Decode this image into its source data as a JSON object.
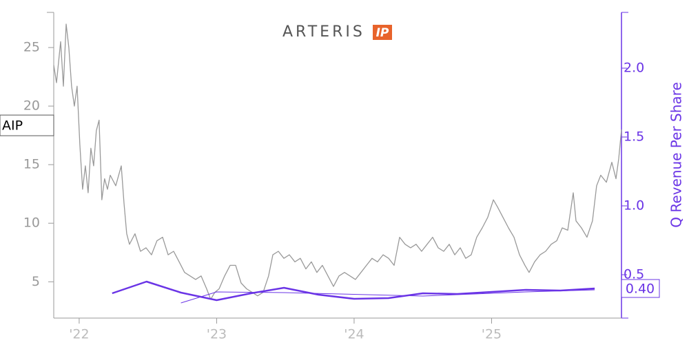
{
  "chart_data": {
    "type": "line",
    "logo_text": "ARTERIS",
    "logo_badge": "IP",
    "y2label": "Q Revenue Per Share",
    "xlim": [
      2021.815,
      2025.945
    ],
    "xticks": [
      {
        "value": 2022,
        "label": "'22"
      },
      {
        "value": 2023,
        "label": "'23"
      },
      {
        "value": 2024,
        "label": "'24"
      },
      {
        "value": 2025,
        "label": "'25"
      }
    ],
    "ylim": [
      1.9,
      28
    ],
    "yticks": [
      5,
      10,
      15,
      20,
      25
    ],
    "y2lim": [
      0.185,
      2.405
    ],
    "y2ticks": [
      0.5,
      {
        "value": 1,
        "label": "1.0"
      },
      1.5,
      {
        "value": 2,
        "label": "2.0"
      }
    ],
    "series": [
      {
        "name": "AIP",
        "color": "#999999",
        "x": [
          2021.815,
          2021.835,
          2021.865,
          2021.885,
          2021.905,
          2021.925,
          2021.945,
          2021.965,
          2021.985,
          2022.005,
          2022.025,
          2022.045,
          2022.065,
          2022.085,
          2022.105,
          2022.125,
          2022.145,
          2022.165,
          2022.185,
          2022.206,
          2022.226,
          2022.266,
          2022.306,
          2022.326,
          2022.346,
          2022.366,
          2022.406,
          2022.446,
          2022.486,
          2022.526,
          2022.566,
          2022.607,
          2022.647,
          2022.687,
          2022.727,
          2022.767,
          2022.807,
          2022.847,
          2022.887,
          2022.927,
          2022.957,
          2022.987,
          2023.018,
          2023.058,
          2023.098,
          2023.138,
          2023.178,
          2023.218,
          2023.258,
          2023.298,
          2023.338,
          2023.378,
          2023.409,
          2023.449,
          2023.489,
          2023.529,
          2023.569,
          2023.609,
          2023.649,
          2023.689,
          2023.729,
          2023.769,
          2023.81,
          2023.85,
          2023.89,
          2023.93,
          2023.97,
          2024.01,
          2024.05,
          2024.09,
          2024.13,
          2024.17,
          2024.211,
          2024.251,
          2024.291,
          2024.331,
          2024.371,
          2024.411,
          2024.451,
          2024.491,
          2024.531,
          2024.571,
          2024.612,
          2024.652,
          2024.692,
          2024.732,
          2024.772,
          2024.812,
          2024.852,
          2024.892,
          2024.932,
          2024.972,
          2025.013,
          2025.043,
          2025.083,
          2025.123,
          2025.163,
          2025.203,
          2025.243,
          2025.273,
          2025.313,
          2025.353,
          2025.393,
          2025.434,
          2025.474,
          2025.514,
          2025.554,
          2025.594,
          2025.614,
          2025.654,
          2025.694,
          2025.734,
          2025.764,
          2025.794,
          2025.835,
          2025.875,
          2025.905,
          2025.925,
          2025.945
        ],
        "values": [
          23.5,
          22,
          25.5,
          21.7,
          27,
          25,
          21.7,
          20,
          21.7,
          16.7,
          12.9,
          14.9,
          12.6,
          16.4,
          14.9,
          17.9,
          18.8,
          12,
          13.8,
          12.9,
          14.1,
          13.2,
          14.9,
          11.7,
          9.1,
          8.2,
          9.1,
          7.6,
          7.9,
          7.3,
          8.5,
          8.8,
          7.3,
          7.6,
          6.7,
          5.8,
          5.5,
          5.2,
          5.5,
          4.4,
          3.5,
          4.1,
          4.4,
          5.5,
          6.4,
          6.4,
          4.9,
          4.4,
          4.1,
          3.8,
          4.1,
          5.5,
          7.3,
          7.6,
          7,
          7.3,
          6.7,
          7,
          6.1,
          6.7,
          5.8,
          6.4,
          5.5,
          4.6,
          5.5,
          5.8,
          5.5,
          5.2,
          5.8,
          6.4,
          7,
          6.7,
          7.3,
          7,
          6.4,
          8.8,
          8.2,
          7.9,
          8.2,
          7.6,
          8.2,
          8.8,
          7.9,
          7.6,
          8.2,
          7.3,
          7.9,
          7,
          7.3,
          8.8,
          9.6,
          10.5,
          12,
          11.4,
          10.5,
          9.6,
          8.8,
          7.3,
          6.4,
          5.8,
          6.7,
          7.3,
          7.6,
          8.2,
          8.5,
          9.6,
          9.4,
          12.6,
          10.2,
          9.6,
          8.8,
          10.2,
          13.2,
          14.1,
          13.5,
          15.2,
          13.8,
          15.5,
          18
        ]
      },
      {
        "color": "#6a34e6",
        "axis": "y2",
        "width": 2.5,
        "x": [
          2022.24,
          2022.49,
          2022.74,
          2023,
          2023.25,
          2023.49,
          2023.74,
          2024,
          2024.25,
          2024.5,
          2024.75,
          2025,
          2025.25,
          2025.5,
          2025.75
        ],
        "values": [
          0.365,
          0.45,
          0.37,
          0.315,
          0.365,
          0.405,
          0.355,
          0.325,
          0.33,
          0.365,
          0.36,
          0.375,
          0.39,
          0.385,
          0.4
        ],
        "value_labels": [
          null,
          null,
          null,
          null,
          null,
          null,
          null,
          null,
          null,
          null,
          null,
          null,
          null,
          null,
          "0.40"
        ]
      },
      {
        "color": "#6a34e6",
        "axis": "y2",
        "width": 1,
        "x": [
          2022.74,
          2023,
          2023.49,
          2024.5,
          2025.25,
          2025.75
        ],
        "values": [
          0.295,
          0.375,
          0.37,
          0.345,
          0.375,
          0.39
        ]
      }
    ]
  }
}
